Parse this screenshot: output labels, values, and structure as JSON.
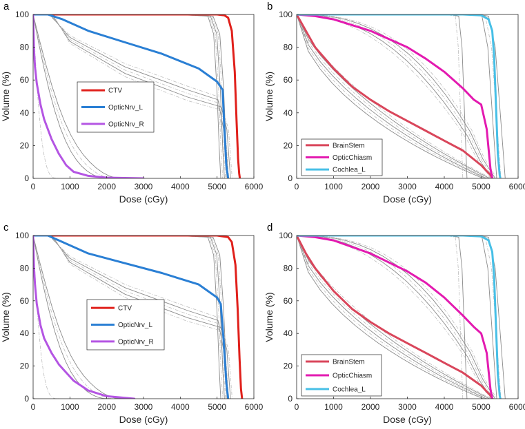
{
  "figure": {
    "panels": [
      "a",
      "b",
      "c",
      "d"
    ]
  },
  "chart_data": [
    {
      "panel": "a",
      "type": "line",
      "title": "",
      "xlabel": "Dose (cGy)",
      "ylabel": "Volume (%)",
      "xlim": [
        0,
        6000
      ],
      "ylim": [
        0,
        100
      ],
      "xticks": [
        "0",
        "1000",
        "2000",
        "3000",
        "4000",
        "5000",
        "6000"
      ],
      "yticks": [
        "0",
        "20",
        "40",
        "60",
        "80",
        "100"
      ],
      "legend_position": "center",
      "series": [
        {
          "name": "CTV",
          "color": "#e0201b",
          "x": [
            0,
            4000,
            5000,
            5200,
            5300,
            5400,
            5480,
            5530,
            5570,
            5600,
            5620
          ],
          "y": [
            100,
            100,
            100,
            99.5,
            98,
            90,
            65,
            35,
            12,
            3,
            0
          ]
        },
        {
          "name": "OpticNrv_L",
          "color": "#2a7fd4",
          "x": [
            0,
            400,
            800,
            1500,
            2500,
            3500,
            4500,
            5000,
            5150,
            5200,
            5250,
            5300
          ],
          "y": [
            100,
            100,
            97,
            90,
            83,
            76,
            67,
            59,
            54,
            30,
            8,
            0
          ]
        },
        {
          "name": "OpticNrv_R",
          "color": "#b455e3",
          "x": [
            0,
            25,
            50,
            100,
            200,
            300,
            500,
            700,
            900,
            1100,
            1500,
            2000,
            3000
          ],
          "y": [
            100,
            78,
            68,
            58,
            45,
            36,
            24,
            15,
            8,
            4,
            1.5,
            0.4,
            0
          ]
        }
      ],
      "reference_curves": {
        "color": "#8a8a8a",
        "count": 14
      }
    },
    {
      "panel": "b",
      "type": "line",
      "title": "",
      "xlabel": "Dose (cGy)",
      "ylabel": "Volume (%)",
      "xlim": [
        0,
        6000
      ],
      "ylim": [
        0,
        100
      ],
      "xticks": [
        "0",
        "1000",
        "2000",
        "3000",
        "4000",
        "5000",
        "6000"
      ],
      "yticks": [
        "0",
        "20",
        "40",
        "60",
        "80",
        "100"
      ],
      "legend_position": "bottom-left",
      "series": [
        {
          "name": "BrainStem",
          "color": "#d9465b",
          "x": [
            0,
            250,
            500,
            1000,
            1500,
            2000,
            2500,
            3000,
            3500,
            4000,
            4500,
            5000,
            5250,
            5300
          ],
          "y": [
            100,
            90,
            80,
            67,
            56,
            48,
            41,
            35,
            29,
            23,
            17,
            8,
            2,
            0
          ]
        },
        {
          "name": "OpticChiasm",
          "color": "#e31ab0",
          "x": [
            0,
            500,
            1000,
            2000,
            3000,
            3500,
            4000,
            4500,
            4800,
            5000,
            5150,
            5250,
            5300
          ],
          "y": [
            100,
            99,
            97,
            90,
            80,
            73,
            65,
            55,
            48,
            45,
            30,
            6,
            0
          ]
        },
        {
          "name": "Cochlea_L",
          "color": "#47bfe6",
          "x": [
            0,
            4500,
            5000,
            5200,
            5300,
            5350,
            5400,
            5450,
            5500,
            5520
          ],
          "y": [
            100,
            100,
            99.5,
            97,
            90,
            75,
            45,
            15,
            2,
            0
          ]
        }
      ],
      "reference_curves": {
        "color": "#8a8a8a",
        "count": 16
      }
    },
    {
      "panel": "c",
      "type": "line",
      "title": "",
      "xlabel": "Dose (cGy)",
      "ylabel": "Volume (%)",
      "xlim": [
        0,
        6000
      ],
      "ylim": [
        0,
        100
      ],
      "xticks": [
        "0",
        "1000",
        "2000",
        "3000",
        "4000",
        "5000",
        "6000"
      ],
      "yticks": [
        "0",
        "20",
        "40",
        "60",
        "80",
        "100"
      ],
      "legend_position": "center",
      "series": [
        {
          "name": "CTV",
          "color": "#e0201b",
          "x": [
            0,
            4000,
            5000,
            5300,
            5400,
            5500,
            5560,
            5610,
            5650,
            5680
          ],
          "y": [
            100,
            100,
            100,
            99,
            96,
            82,
            55,
            25,
            6,
            0
          ]
        },
        {
          "name": "OpticNrv_L",
          "color": "#2a7fd4",
          "x": [
            0,
            400,
            800,
            1500,
            2500,
            3500,
            4500,
            5000,
            5100,
            5180,
            5250,
            5300
          ],
          "y": [
            100,
            100,
            96,
            89,
            83,
            77,
            70,
            62,
            58,
            35,
            10,
            0
          ]
        },
        {
          "name": "OpticNrv_R",
          "color": "#b455e3",
          "x": [
            0,
            25,
            50,
            100,
            200,
            300,
            500,
            700,
            900,
            1100,
            1500,
            2000,
            2750
          ],
          "y": [
            100,
            80,
            70,
            58,
            45,
            37,
            28,
            21,
            16,
            11,
            5,
            1.5,
            0
          ]
        }
      ],
      "reference_curves": {
        "color": "#8a8a8a",
        "count": 14
      }
    },
    {
      "panel": "d",
      "type": "line",
      "title": "",
      "xlabel": "Dose (cGy)",
      "ylabel": "Volume (%)",
      "xlim": [
        0,
        6000
      ],
      "ylim": [
        0,
        100
      ],
      "xticks": [
        "0",
        "1000",
        "2000",
        "3000",
        "4000",
        "5000",
        "6000"
      ],
      "yticks": [
        "0",
        "20",
        "40",
        "60",
        "80",
        "100"
      ],
      "legend_position": "bottom-left",
      "series": [
        {
          "name": "BrainStem",
          "color": "#d9465b",
          "x": [
            0,
            250,
            500,
            1000,
            1500,
            2000,
            2500,
            3000,
            3500,
            4000,
            4500,
            5000,
            5250,
            5300
          ],
          "y": [
            100,
            89,
            80,
            66,
            55,
            47,
            40,
            34,
            28,
            22,
            16,
            8,
            2,
            0
          ]
        },
        {
          "name": "OpticChiasm",
          "color": "#e31ab0",
          "x": [
            0,
            500,
            1000,
            2000,
            3000,
            3500,
            4000,
            4500,
            4800,
            5000,
            5150,
            5250,
            5300
          ],
          "y": [
            100,
            99,
            97,
            89,
            78,
            71,
            62,
            51,
            44,
            40,
            28,
            6,
            0
          ]
        },
        {
          "name": "Cochlea_L",
          "color": "#47bfe6",
          "x": [
            0,
            4500,
            5000,
            5200,
            5300,
            5350,
            5400,
            5450,
            5500,
            5520
          ],
          "y": [
            100,
            100,
            99.5,
            97,
            90,
            75,
            45,
            15,
            2,
            0
          ]
        }
      ],
      "reference_curves": {
        "color": "#8a8a8a",
        "count": 16
      }
    }
  ]
}
